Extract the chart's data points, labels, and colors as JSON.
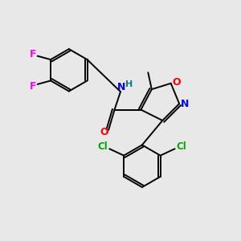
{
  "bg_color": "#e8e8e8",
  "atom_colors": {
    "N": "#0000ff",
    "O": "#ff0000",
    "F": "#ff00ff",
    "Cl": "#00aa00",
    "H": "#008080"
  },
  "figsize": [
    3.0,
    3.0
  ],
  "dpi": 100
}
